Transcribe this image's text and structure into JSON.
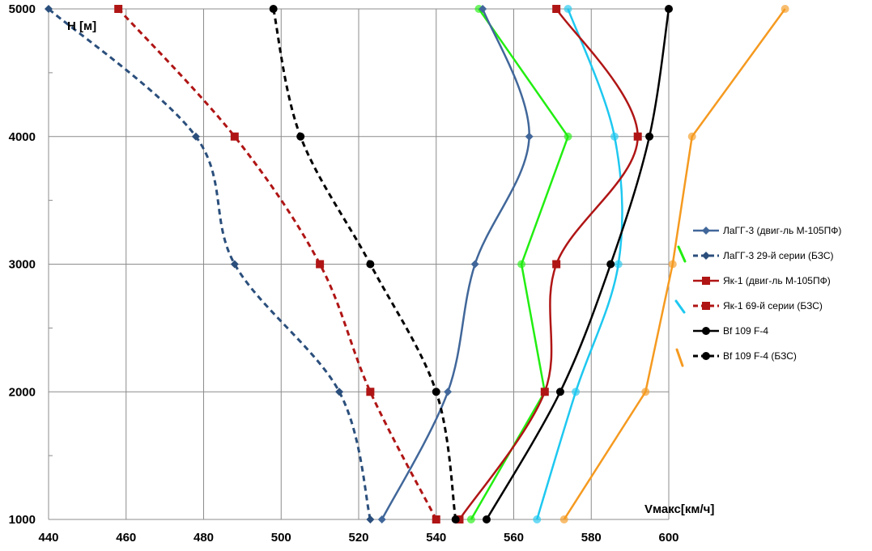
{
  "chart_data": {
    "type": "line",
    "xlabel": "Vмакс[км/ч]",
    "ylabel": "H [м]",
    "xlim": [
      440,
      600
    ],
    "ylim": [
      1000,
      5000
    ],
    "x_ticks": [
      440,
      460,
      480,
      500,
      520,
      540,
      560,
      580,
      600
    ],
    "y_ticks": [
      1000,
      2000,
      3000,
      4000,
      5000
    ],
    "grid": true,
    "legend_position": "right",
    "series": [
      {
        "name": "ЛаГГ-3 (двиг-ль М-105ПФ)",
        "color": "#41679a",
        "dash": false,
        "marker": "diamond",
        "points": [
          [
            526,
            1000
          ],
          [
            543,
            2000
          ],
          [
            550,
            3000
          ],
          [
            564,
            4000
          ],
          [
            552,
            5000
          ]
        ]
      },
      {
        "name": "ЛаГГ-3 29-й серии (БЗС)",
        "color": "#2b4f7c",
        "dash": true,
        "marker": "diamond",
        "points": [
          [
            523,
            1000
          ],
          [
            515,
            2000
          ],
          [
            488,
            3000
          ],
          [
            478,
            4000
          ],
          [
            440,
            5000
          ]
        ]
      },
      {
        "name": "Як-1  (двиг-ль М-105ПФ)",
        "color": "#b01515",
        "dash": false,
        "marker": "square",
        "points": [
          [
            546,
            1000
          ],
          [
            568,
            2000
          ],
          [
            571,
            3000
          ],
          [
            592,
            4000
          ],
          [
            571,
            5000
          ]
        ]
      },
      {
        "name": "Як-1 69-й серии (БЗС)",
        "color": "#b01515",
        "dash": true,
        "marker": "square",
        "points": [
          [
            540,
            1000
          ],
          [
            523,
            2000
          ],
          [
            510,
            3000
          ],
          [
            488,
            4000
          ],
          [
            458,
            5000
          ]
        ]
      },
      {
        "name": "Bf 109 F-4",
        "color": "#000000",
        "dash": false,
        "marker": "circle",
        "points": [
          [
            553,
            1000
          ],
          [
            572,
            2000
          ],
          [
            585,
            3000
          ],
          [
            595,
            4000
          ],
          [
            600,
            5000
          ]
        ]
      },
      {
        "name": "Bf 109 F-4 (БЗС)",
        "color": "#000000",
        "dash": true,
        "marker": "circle",
        "points": [
          [
            545,
            1000
          ],
          [
            540,
            2000
          ],
          [
            523,
            3000
          ],
          [
            505,
            4000
          ],
          [
            498,
            5000
          ]
        ]
      },
      {
        "name": "",
        "color": "#22ee11",
        "dash": false,
        "marker": "circle",
        "legend": false,
        "points": [
          [
            549,
            1000
          ],
          [
            568,
            2000
          ],
          [
            562,
            3000
          ],
          [
            574,
            4000
          ],
          [
            551,
            5000
          ]
        ]
      },
      {
        "name": "",
        "color": "#1ec8f0",
        "dash": false,
        "marker": "circle",
        "legend": false,
        "points": [
          [
            566,
            1000
          ],
          [
            576,
            2000
          ],
          [
            587,
            3000
          ],
          [
            586,
            4000
          ],
          [
            574,
            5000
          ]
        ]
      },
      {
        "name": "",
        "color": "#f59a20",
        "dash": false,
        "marker": "circle",
        "legend": false,
        "points": [
          [
            573,
            1000
          ],
          [
            594,
            2000
          ],
          [
            601,
            3000
          ],
          [
            606,
            4000
          ],
          [
            630,
            5000
          ]
        ]
      }
    ],
    "legend_stray_marks": [
      {
        "color": "#22ee11"
      },
      {
        "color": "#1ec8f0"
      },
      {
        "color": "#f59a20"
      }
    ]
  }
}
